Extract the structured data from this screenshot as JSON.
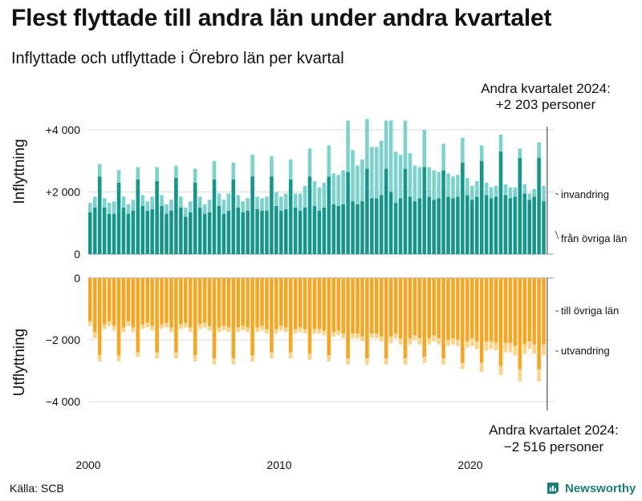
{
  "title": "Flest flyttade till andra län under andra kvartalet",
  "subtitle": "Inflyttade och utflyttade i Örebro län per kvartal",
  "source": "Källa: SCB",
  "brand": "Newsworthy",
  "colors": {
    "inflytt_inrikes": "#16968a",
    "inflytt_invandring": "#7dd3cc",
    "utflytt_inrikes": "#f5a623",
    "utflytt_utvandring": "#f9d48a",
    "text": "#111111",
    "grid": "#dddddd",
    "brand": "#1f7f74"
  },
  "chart_data": [
    {
      "panel": "inflyttning",
      "type": "bar",
      "stacked": true,
      "ylabel": "Inflyttning",
      "ylim": [
        0,
        4300
      ],
      "yticks": [
        0,
        2000,
        4000
      ],
      "ytick_labels": [
        "0",
        "+2 000",
        "+4 000"
      ],
      "annotation": [
        "Andra kvartalet 2024:",
        "+2 203 personer"
      ],
      "series": [
        {
          "name": "från övriga län",
          "color_key": "inflytt_inrikes",
          "values": [
            1350,
            1500,
            2500,
            1500,
            1300,
            1300,
            2300,
            1500,
            1300,
            1400,
            2400,
            1550,
            1400,
            1450,
            2350,
            1550,
            1300,
            1400,
            2450,
            1500,
            1200,
            1350,
            2300,
            1500,
            1300,
            1350,
            2400,
            1550,
            1300,
            1400,
            2400,
            1500,
            1350,
            1400,
            2500,
            1450,
            1400,
            1400,
            2500,
            1550,
            1400,
            1450,
            2400,
            1500,
            1400,
            1500,
            2500,
            1550,
            1400,
            1500,
            2500,
            1600,
            1550,
            1600,
            2650,
            1700,
            1600,
            1700,
            2750,
            1800,
            1800,
            1900,
            2750,
            2000,
            1650,
            1800,
            2750,
            1850,
            1700,
            1800,
            2800,
            1850,
            1750,
            1800,
            2700,
            1850,
            1800,
            1850,
            2950,
            1900,
            1750,
            1850,
            3000,
            1900,
            1800,
            1850,
            3300,
            1900,
            1800,
            1850,
            3100,
            1950,
            1750,
            1850,
            3100,
            1700
          ]
        },
        {
          "name": "invandring",
          "color_key": "inflytt_invandring",
          "values": [
            300,
            350,
            400,
            300,
            350,
            400,
            400,
            350,
            300,
            350,
            400,
            350,
            300,
            400,
            450,
            350,
            300,
            350,
            400,
            350,
            300,
            350,
            450,
            350,
            300,
            400,
            600,
            400,
            450,
            550,
            550,
            400,
            350,
            400,
            700,
            400,
            400,
            450,
            650,
            450,
            450,
            500,
            650,
            450,
            550,
            700,
            900,
            800,
            750,
            800,
            1000,
            1000,
            1000,
            1100,
            1650,
            1650,
            1250,
            1350,
            1600,
            1650,
            1650,
            1750,
            1550,
            2300,
            1650,
            1400,
            1550,
            1400,
            1150,
            1000,
            1200,
            950,
            950,
            850,
            850,
            750,
            700,
            700,
            800,
            550,
            450,
            500,
            500,
            400,
            350,
            350,
            550,
            350,
            350,
            300,
            300,
            300,
            200,
            250,
            500,
            500
          ]
        }
      ]
    },
    {
      "panel": "utflyttning",
      "type": "bar",
      "stacked": true,
      "ylabel": "Utflyttning",
      "ylim": [
        -4100,
        0
      ],
      "yticks": [
        0,
        -2000,
        -4000
      ],
      "ytick_labels": [
        "0",
        "−2 000",
        "−4 000"
      ],
      "annotation": [
        "Andra kvartalet 2024:",
        "−2 516 personer"
      ],
      "series": [
        {
          "name": "till övriga län",
          "color_key": "utflytt_inrikes",
          "values": [
            -1400,
            -1750,
            -2500,
            -1500,
            -1400,
            -1550,
            -2500,
            -1600,
            -1400,
            -1600,
            -2400,
            -1500,
            -1450,
            -1550,
            -2400,
            -1500,
            -1450,
            -1600,
            -2400,
            -1500,
            -1450,
            -1600,
            -2500,
            -1500,
            -1450,
            -1550,
            -2600,
            -1600,
            -1550,
            -1600,
            -2600,
            -1600,
            -1550,
            -1600,
            -2500,
            -1600,
            -1550,
            -1650,
            -2400,
            -1650,
            -1550,
            -1600,
            -2400,
            -1650,
            -1600,
            -1650,
            -2450,
            -1650,
            -1650,
            -1700,
            -2500,
            -1750,
            -1700,
            -1800,
            -2600,
            -1800,
            -1800,
            -1900,
            -2600,
            -1800,
            -1800,
            -1900,
            -2600,
            -1900,
            -1800,
            -1950,
            -2600,
            -1950,
            -1850,
            -1950,
            -2550,
            -1950,
            -1850,
            -1950,
            -2600,
            -2000,
            -1950,
            -2000,
            -2750,
            -2050,
            -1950,
            -2050,
            -2750,
            -2050,
            -2050,
            -2100,
            -2850,
            -2100,
            -2100,
            -2200,
            -2950,
            -2150,
            -2050,
            -2150,
            -2950,
            -2150
          ]
        },
        {
          "name": "utvandring",
          "color_key": "utflytt_utvandring",
          "values": [
            -150,
            -200,
            -200,
            -150,
            -150,
            -150,
            -200,
            -150,
            -150,
            -150,
            -150,
            -150,
            -150,
            -150,
            -200,
            -150,
            -150,
            -150,
            -200,
            -150,
            -150,
            -150,
            -200,
            -150,
            -150,
            -150,
            -200,
            -150,
            -150,
            -150,
            -200,
            -150,
            -150,
            -150,
            -200,
            -150,
            -150,
            -150,
            -200,
            -150,
            -150,
            -150,
            -200,
            -150,
            -150,
            -150,
            -200,
            -150,
            -150,
            -150,
            -200,
            -150,
            -150,
            -150,
            -200,
            -150,
            -150,
            -150,
            -200,
            -150,
            -150,
            -150,
            -200,
            -200,
            -150,
            -200,
            -200,
            -200,
            -150,
            -200,
            -200,
            -200,
            -200,
            -200,
            -200,
            -200,
            -200,
            -200,
            -200,
            -200,
            -250,
            -250,
            -300,
            -300,
            -250,
            -250,
            -300,
            -300,
            -300,
            -300,
            -400,
            -300,
            -250,
            -300,
            -400,
            -350
          ]
        }
      ]
    }
  ],
  "x_axis": {
    "tick_labels": [
      "2000",
      "2010",
      "2020"
    ]
  }
}
